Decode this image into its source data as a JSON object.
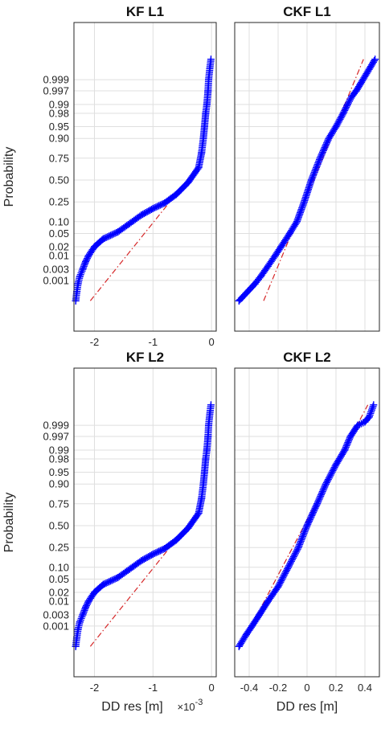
{
  "chart_data": [
    {
      "type": "scatter",
      "title": "KF L1",
      "ylabel": "Probability",
      "xlabel": "",
      "x_ticks": [
        "-2",
        "-1",
        "0"
      ],
      "x_exponent_label": "",
      "xlim": [
        -2.35,
        0.08
      ],
      "series": [
        {
          "role": "data",
          "marker": "+",
          "color": "#0000ff",
          "points": [
            [
              -2.32,
              0.0001
            ],
            [
              -2.3,
              0.0003
            ],
            [
              -2.28,
              0.0007
            ],
            [
              -2.25,
              0.0015
            ],
            [
              -2.2,
              0.003
            ],
            [
              -2.15,
              0.006
            ],
            [
              -2.1,
              0.01
            ],
            [
              -2.0,
              0.02
            ],
            [
              -1.85,
              0.035
            ],
            [
              -1.6,
              0.055
            ],
            [
              -1.4,
              0.09
            ],
            [
              -1.2,
              0.14
            ],
            [
              -1.0,
              0.19
            ],
            [
              -0.8,
              0.24
            ],
            [
              -0.6,
              0.33
            ],
            [
              -0.4,
              0.47
            ],
            [
              -0.22,
              0.65
            ],
            [
              -0.17,
              0.8
            ],
            [
              -0.14,
              0.9
            ],
            [
              -0.12,
              0.95
            ],
            [
              -0.1,
              0.98
            ],
            [
              -0.08,
              0.99
            ],
            [
              -0.06,
              0.997
            ],
            [
              -0.05,
              0.999
            ],
            [
              -0.03,
              0.9997
            ],
            [
              -0.01,
              0.9999
            ]
          ]
        },
        {
          "role": "reference-line",
          "color": "#d62728",
          "points": [
            [
              -2.07,
              0.0001
            ],
            [
              -0.3,
              0.6
            ]
          ]
        }
      ]
    },
    {
      "type": "scatter",
      "title": "CKF L1",
      "ylabel": "",
      "xlabel": "",
      "x_ticks": [],
      "x_exponent_label": "",
      "xlim": [
        -0.5,
        0.5
      ],
      "series": [
        {
          "role": "data",
          "marker": "+",
          "color": "#0000ff",
          "points": [
            [
              -0.47,
              0.0001
            ],
            [
              -0.36,
              0.0007
            ],
            [
              -0.32,
              0.0015
            ],
            [
              -0.27,
              0.004
            ],
            [
              -0.22,
              0.01
            ],
            [
              -0.18,
              0.02
            ],
            [
              -0.12,
              0.05
            ],
            [
              -0.07,
              0.1
            ],
            [
              -0.02,
              0.25
            ],
            [
              0.03,
              0.5
            ],
            [
              0.09,
              0.75
            ],
            [
              0.15,
              0.9
            ],
            [
              0.2,
              0.95
            ],
            [
              0.25,
              0.98
            ],
            [
              0.28,
              0.99
            ],
            [
              0.31,
              0.995
            ],
            [
              0.34,
              0.997
            ],
            [
              0.37,
              0.9985
            ],
            [
              0.47,
              0.9999
            ]
          ]
        },
        {
          "role": "reference-line",
          "color": "#d62728",
          "points": [
            [
              -0.3,
              0.0001
            ],
            [
              0.39,
              0.9999
            ]
          ]
        }
      ]
    },
    {
      "type": "scatter",
      "title": "KF L2",
      "ylabel": "Probability",
      "xlabel": "DD res [m]",
      "x_ticks": [
        "-2",
        "-1",
        "0"
      ],
      "x_exponent_label": "×10",
      "x_exponent": "-3",
      "xlim": [
        -2.35,
        0.08
      ],
      "series": [
        {
          "role": "data",
          "marker": "+",
          "color": "#0000ff",
          "points": [
            [
              -2.32,
              0.0001
            ],
            [
              -2.3,
              0.0003
            ],
            [
              -2.28,
              0.0007
            ],
            [
              -2.25,
              0.0015
            ],
            [
              -2.2,
              0.003
            ],
            [
              -2.15,
              0.006
            ],
            [
              -2.1,
              0.01
            ],
            [
              -2.0,
              0.02
            ],
            [
              -1.85,
              0.035
            ],
            [
              -1.6,
              0.055
            ],
            [
              -1.4,
              0.09
            ],
            [
              -1.2,
              0.14
            ],
            [
              -1.0,
              0.19
            ],
            [
              -0.8,
              0.24
            ],
            [
              -0.6,
              0.33
            ],
            [
              -0.4,
              0.47
            ],
            [
              -0.22,
              0.65
            ],
            [
              -0.17,
              0.8
            ],
            [
              -0.14,
              0.9
            ],
            [
              -0.12,
              0.95
            ],
            [
              -0.1,
              0.98
            ],
            [
              -0.08,
              0.99
            ],
            [
              -0.06,
              0.997
            ],
            [
              -0.05,
              0.999
            ],
            [
              -0.03,
              0.9997
            ],
            [
              -0.01,
              0.9999
            ]
          ]
        },
        {
          "role": "reference-line",
          "color": "#d62728",
          "points": [
            [
              -2.07,
              0.0001
            ],
            [
              -0.3,
              0.6
            ]
          ]
        }
      ]
    },
    {
      "type": "scatter",
      "title": "CKF L2",
      "ylabel": "",
      "xlabel": "DD res [m]",
      "x_ticks": [
        "-0.4",
        "-0.2",
        "0",
        "0.2",
        "0.4"
      ],
      "x_exponent_label": "",
      "xlim": [
        -0.5,
        0.5
      ],
      "series": [
        {
          "role": "data",
          "marker": "+",
          "color": "#0000ff",
          "points": [
            [
              -0.47,
              0.0001
            ],
            [
              -0.42,
              0.0004
            ],
            [
              -0.38,
              0.001
            ],
            [
              -0.33,
              0.003
            ],
            [
              -0.27,
              0.01
            ],
            [
              -0.2,
              0.03
            ],
            [
              -0.13,
              0.1
            ],
            [
              -0.06,
              0.25
            ],
            [
              0.0,
              0.5
            ],
            [
              0.07,
              0.75
            ],
            [
              0.13,
              0.9
            ],
            [
              0.2,
              0.97
            ],
            [
              0.26,
              0.99
            ],
            [
              0.3,
              0.997
            ],
            [
              0.35,
              0.999
            ],
            [
              0.4,
              0.9993
            ],
            [
              0.43,
              0.9996
            ],
            [
              0.46,
              0.9999
            ]
          ]
        },
        {
          "role": "reference-line",
          "color": "#d62728",
          "points": [
            [
              -0.46,
              0.0001
            ],
            [
              0.42,
              0.9999
            ]
          ]
        }
      ]
    }
  ],
  "y_ticks": [
    "0.001",
    "0.003",
    "0.01",
    "0.02",
    "0.05",
    "0.10",
    "0.25",
    "0.50",
    "0.75",
    "0.90",
    "0.95",
    "0.98",
    "0.99",
    "0.997",
    "0.999"
  ],
  "y_scale": "normal-probability",
  "grid": true
}
